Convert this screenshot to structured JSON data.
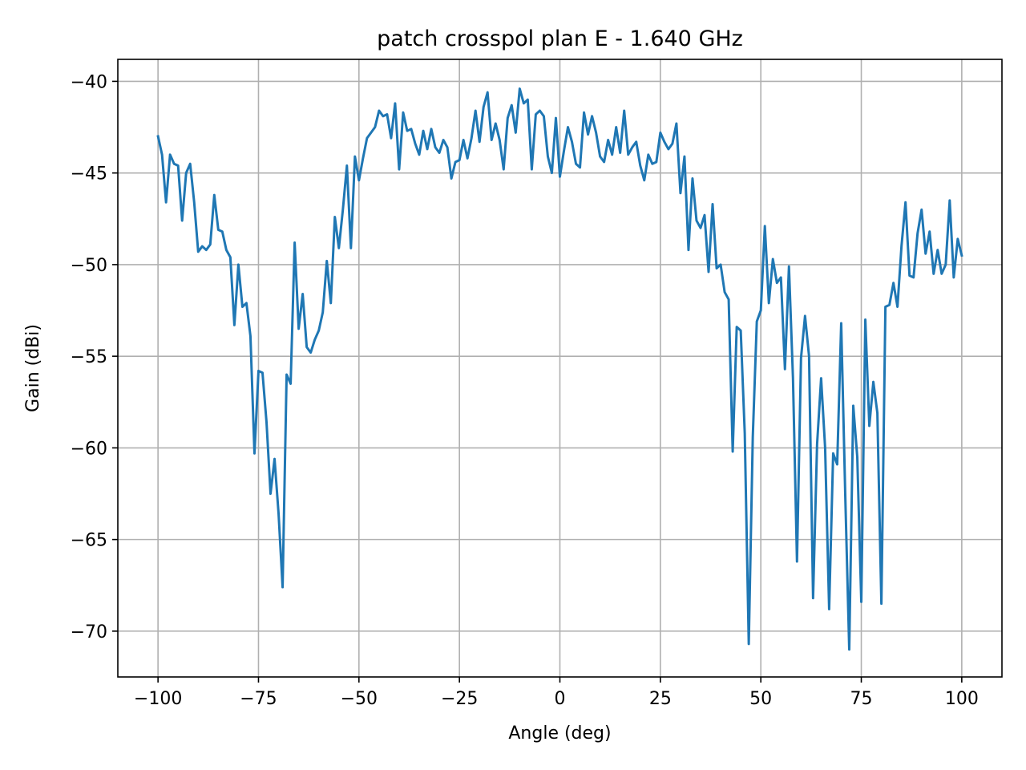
{
  "chart_data": {
    "type": "line",
    "title": "patch crosspol plan E - 1.640 GHz",
    "xlabel": "Angle (deg)",
    "ylabel": "Gain (dBi)",
    "xlim": [
      -110,
      110
    ],
    "ylim": [
      -72.5,
      -38.8
    ],
    "xticks": [
      -100,
      -75,
      -50,
      -25,
      0,
      25,
      50,
      75,
      100
    ],
    "yticks": [
      -40,
      -45,
      -50,
      -55,
      -60,
      -65,
      -70
    ],
    "xtick_labels": [
      "−100",
      "−75",
      "−50",
      "−25",
      "0",
      "25",
      "50",
      "75",
      "100"
    ],
    "ytick_labels": [
      "−40",
      "−45",
      "−50",
      "−55",
      "−60",
      "−65",
      "−70"
    ],
    "grid": true,
    "legend": "none",
    "series": [
      {
        "color": "#1f77b4",
        "x": [
          -100,
          -99,
          -98,
          -97,
          -96,
          -95,
          -94,
          -93,
          -92,
          -91,
          -90,
          -89,
          -88,
          -87,
          -86,
          -85,
          -84,
          -83,
          -82,
          -81,
          -80,
          -79,
          -78,
          -77,
          -76,
          -75,
          -74,
          -73,
          -72,
          -71,
          -70,
          -69,
          -68,
          -67,
          -66,
          -65,
          -64,
          -63,
          -62,
          -61,
          -60,
          -59,
          -58,
          -57,
          -56,
          -55,
          -54,
          -53,
          -52,
          -51,
          -50,
          -49,
          -48,
          -47,
          -46,
          -45,
          -44,
          -43,
          -42,
          -41,
          -40,
          -39,
          -38,
          -37,
          -36,
          -35,
          -34,
          -33,
          -32,
          -31,
          -30,
          -29,
          -28,
          -27,
          -26,
          -25,
          -24,
          -23,
          -22,
          -21,
          -20,
          -19,
          -18,
          -17,
          -16,
          -15,
          -14,
          -13,
          -12,
          -11,
          -10,
          -9,
          -8,
          -7,
          -6,
          -5,
          -4,
          -3,
          -2,
          -1,
          0,
          1,
          2,
          3,
          4,
          5,
          6,
          7,
          8,
          9,
          10,
          11,
          12,
          13,
          14,
          15,
          16,
          17,
          18,
          19,
          20,
          21,
          22,
          23,
          24,
          25,
          26,
          27,
          28,
          29,
          30,
          31,
          32,
          33,
          34,
          35,
          36,
          37,
          38,
          39,
          40,
          41,
          42,
          43,
          44,
          45,
          46,
          47,
          48,
          49,
          50,
          51,
          52,
          53,
          54,
          55,
          56,
          57,
          58,
          59,
          60,
          61,
          62,
          63,
          64,
          65,
          66,
          67,
          68,
          69,
          70,
          71,
          72,
          73,
          74,
          75,
          76,
          77,
          78,
          79,
          80,
          81,
          82,
          83,
          84,
          85,
          86,
          87,
          88,
          89,
          90,
          91,
          92,
          93,
          94,
          95,
          96,
          97,
          98,
          99,
          100
        ],
        "y": [
          -43.0,
          -44.0,
          -46.6,
          -44.0,
          -44.5,
          -44.6,
          -47.6,
          -45.0,
          -44.5,
          -46.6,
          -49.3,
          -49.0,
          -49.2,
          -48.9,
          -46.2,
          -48.1,
          -48.2,
          -49.2,
          -49.6,
          -53.3,
          -50.0,
          -52.3,
          -52.1,
          -53.9,
          -60.3,
          -55.8,
          -55.9,
          -58.6,
          -62.5,
          -60.6,
          -63.6,
          -67.6,
          -56.0,
          -56.5,
          -48.8,
          -53.5,
          -51.6,
          -54.5,
          -54.8,
          -54.1,
          -53.6,
          -52.6,
          -49.8,
          -52.1,
          -47.4,
          -49.1,
          -47.0,
          -44.6,
          -49.1,
          -44.1,
          -45.4,
          -44.2,
          -43.1,
          -42.8,
          -42.5,
          -41.6,
          -41.9,
          -41.8,
          -43.1,
          -41.2,
          -44.8,
          -41.7,
          -42.7,
          -42.6,
          -43.4,
          -44.0,
          -42.7,
          -43.7,
          -42.6,
          -43.6,
          -43.9,
          -43.2,
          -43.6,
          -45.3,
          -44.4,
          -44.3,
          -43.2,
          -44.2,
          -43.1,
          -41.6,
          -43.3,
          -41.4,
          -40.6,
          -43.2,
          -42.3,
          -43.2,
          -44.8,
          -42.0,
          -41.3,
          -42.8,
          -40.4,
          -41.2,
          -41.0,
          -44.8,
          -41.8,
          -41.6,
          -41.9,
          -44.1,
          -45.0,
          -42.0,
          -45.2,
          -43.8,
          -42.5,
          -43.3,
          -44.5,
          -44.7,
          -41.7,
          -42.9,
          -41.9,
          -42.8,
          -44.1,
          -44.4,
          -43.2,
          -44.0,
          -42.5,
          -43.9,
          -41.6,
          -44.0,
          -43.6,
          -43.3,
          -44.6,
          -45.4,
          -44.0,
          -44.5,
          -44.4,
          -42.8,
          -43.3,
          -43.7,
          -43.4,
          -42.3,
          -46.1,
          -44.1,
          -49.2,
          -45.3,
          -47.6,
          -48.0,
          -47.3,
          -50.4,
          -46.7,
          -50.2,
          -50.0,
          -51.5,
          -51.9,
          -60.2,
          -53.4,
          -53.6,
          -59.2,
          -70.7,
          -59.4,
          -53.1,
          -52.5,
          -47.9,
          -52.1,
          -49.7,
          -51.0,
          -50.7,
          -55.7,
          -50.1,
          -56.2,
          -66.2,
          -55.1,
          -52.8,
          -55.0,
          -68.2,
          -59.8,
          -56.2,
          -60.0,
          -68.8,
          -60.3,
          -60.9,
          -53.2,
          -62.5,
          -71.0,
          -57.7,
          -60.5,
          -68.4,
          -53.0,
          -58.8,
          -56.4,
          -58.1,
          -68.5,
          -52.3,
          -52.2,
          -51.0,
          -52.3,
          -49.0,
          -46.6,
          -50.6,
          -50.7,
          -48.3,
          -47.0,
          -49.4,
          -48.2,
          -50.5,
          -49.2,
          -50.5,
          -50.0,
          -46.5,
          -50.7,
          -48.6,
          -49.5
        ]
      }
    ]
  }
}
